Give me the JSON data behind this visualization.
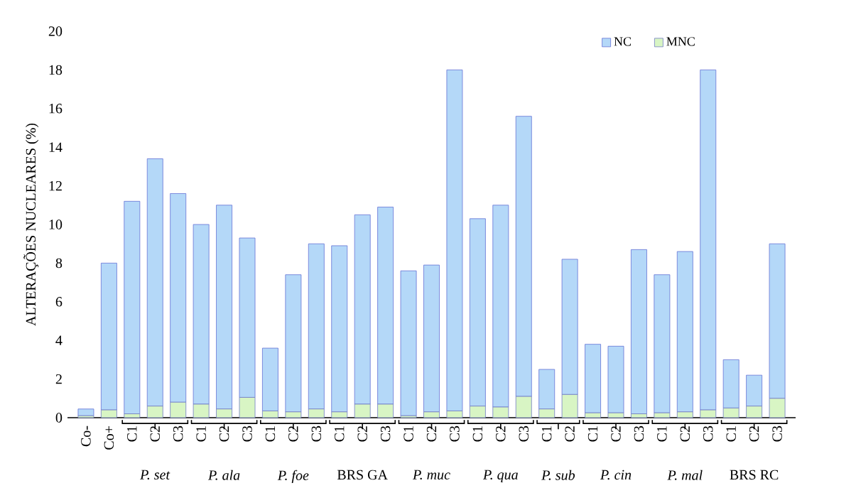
{
  "chart_data": {
    "type": "bar",
    "stacked": true,
    "ylabel": "ALTERAÇÕES NUCLEARES (%)",
    "categories": [
      "Co-",
      "Co+",
      "C1",
      "C2",
      "C3",
      "C1",
      "C2",
      "C3",
      "C1",
      "C2",
      "C3",
      "C1",
      "C2",
      "C3",
      "C1",
      "C2",
      "C3",
      "C1",
      "C2",
      "C3",
      "C1",
      "C2",
      "C1",
      "C2",
      "C3",
      "C1",
      "C2",
      "C3",
      "C1",
      "C2",
      "C3"
    ],
    "series": [
      {
        "name": "MNC",
        "color": "#d8f5c4",
        "values": [
          0.1,
          0.4,
          0.2,
          0.6,
          0.8,
          0.7,
          0.45,
          1.05,
          0.35,
          0.3,
          0.45,
          0.3,
          0.7,
          0.7,
          0.1,
          0.3,
          0.35,
          0.6,
          0.55,
          1.1,
          0.45,
          1.2,
          0.25,
          0.25,
          0.2,
          0.25,
          0.3,
          0.4,
          0.5,
          0.6,
          1.0
        ]
      },
      {
        "name": "NC",
        "color": "#b4d8f8",
        "values": [
          0.35,
          7.6,
          11.0,
          12.8,
          10.8,
          9.3,
          10.55,
          8.25,
          3.25,
          7.1,
          8.55,
          8.6,
          9.8,
          10.2,
          7.5,
          7.6,
          17.65,
          9.7,
          10.45,
          14.5,
          2.05,
          7.0,
          3.55,
          3.45,
          8.5,
          7.15,
          8.3,
          17.6,
          2.5,
          1.6,
          8.0
        ]
      }
    ],
    "annotations": [
      "*P. set*",
      "*P. ala*",
      "*P. foe*",
      "BRS GA",
      "*P. muc*",
      "*P. qua*",
      "*P. sub*",
      "*P. cin*",
      "*P. mal*",
      "BRS RC"
    ],
    "ylim": [
      0,
      20
    ],
    "yticks": [
      0,
      2,
      4,
      6,
      8,
      10,
      12,
      14,
      16,
      18,
      20
    ],
    "legend": "top right"
  }
}
